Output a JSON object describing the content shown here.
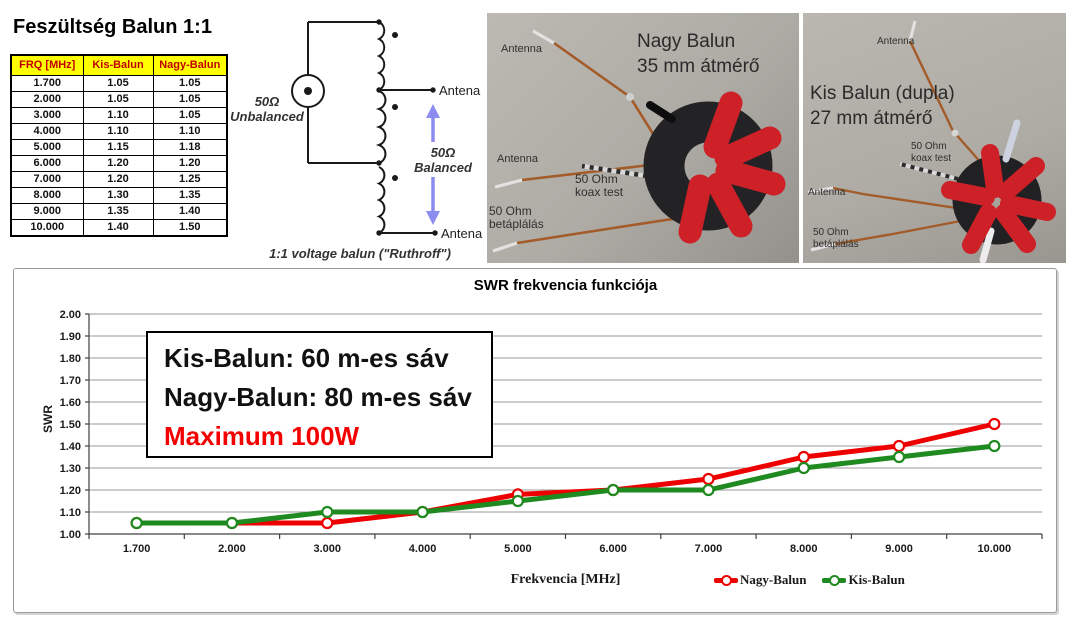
{
  "left_table": {
    "title": "Feszültség Balun 1:1",
    "columns": [
      "FRQ [MHz]",
      "Kis-Balun",
      "Nagy-Balun"
    ],
    "rows": [
      [
        "1.700",
        "1.05",
        "1.05"
      ],
      [
        "2.000",
        "1.05",
        "1.05"
      ],
      [
        "3.000",
        "1.10",
        "1.05"
      ],
      [
        "4.000",
        "1.10",
        "1.10"
      ],
      [
        "5.000",
        "1.15",
        "1.18"
      ],
      [
        "6.000",
        "1.20",
        "1.20"
      ],
      [
        "7.000",
        "1.20",
        "1.25"
      ],
      [
        "8.000",
        "1.30",
        "1.35"
      ],
      [
        "9.000",
        "1.35",
        "1.40"
      ],
      [
        "10.000",
        "1.40",
        "1.50"
      ]
    ],
    "header_bg": "#ffff00",
    "header_text_color": "#c00000"
  },
  "diagram": {
    "unbalanced_label": "50Ω\nUnbalanced",
    "balanced_label": "50Ω\nBalanced",
    "antenna_mid_label": "Antena",
    "antenna_bottom_label": "Antena",
    "caption": "1:1 voltage balun (\"Ruthroff\")",
    "arrow_color": "#8c8cf0"
  },
  "photos": [
    {
      "title": "Nagy Balun\n35 mm átmérő",
      "labels": {
        "antenna_top": "Antenna",
        "antenna_mid": "Antenna",
        "koax": "50 Ohm\nkoax test",
        "feed": "50 Ohm\nbetáplálás"
      }
    },
    {
      "title": "Kis Balun (dupla)\n27 mm átmérő",
      "labels": {
        "antenna_top": "Antenna",
        "antenna_left": "Antenna",
        "koax": "50 Ohm\nkoax test",
        "feed": "50 Ohm\nbetáplálás"
      }
    }
  ],
  "chart": {
    "annotation": {
      "line1": "Kis-Balun: 60 m-es sáv",
      "line2": "Nagy-Balun: 80 m-es sáv",
      "line3": "Maximum 100W",
      "line3_color": "#f50000"
    }
  },
  "chart_data": {
    "type": "line",
    "title": "SWR frekvencia funkciója",
    "xlabel": "Frekvencia [MHz]",
    "ylabel": "SWR",
    "categories": [
      "1.700",
      "2.000",
      "3.000",
      "4.000",
      "5.000",
      "6.000",
      "7.000",
      "8.000",
      "9.000",
      "10.000"
    ],
    "series": [
      {
        "name": "Nagy-Balun",
        "color": "#ee0000",
        "values": [
          1.05,
          1.05,
          1.05,
          1.1,
          1.18,
          1.2,
          1.25,
          1.35,
          1.4,
          1.5
        ]
      },
      {
        "name": "Kis-Balun",
        "color": "#1f8a1f",
        "values": [
          1.05,
          1.05,
          1.1,
          1.1,
          1.15,
          1.2,
          1.2,
          1.3,
          1.35,
          1.4
        ]
      }
    ],
    "ylim": [
      1.0,
      2.0
    ],
    "ytick_step": 0.1,
    "grid": true,
    "legend_position": "bottom-right"
  }
}
